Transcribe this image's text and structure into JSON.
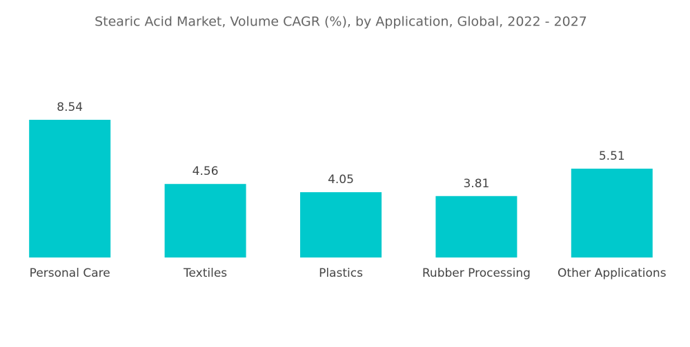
{
  "chart_data": {
    "type": "bar",
    "title": "Stearic Acid Market, Volume CAGR (%), by Application, Global, 2022 - 2027",
    "categories": [
      "Personal Care",
      "Textiles",
      "Plastics",
      "Rubber Processing",
      "Other Applications"
    ],
    "values": [
      8.54,
      4.56,
      4.05,
      3.81,
      5.51
    ],
    "color": "#00c9cc"
  }
}
